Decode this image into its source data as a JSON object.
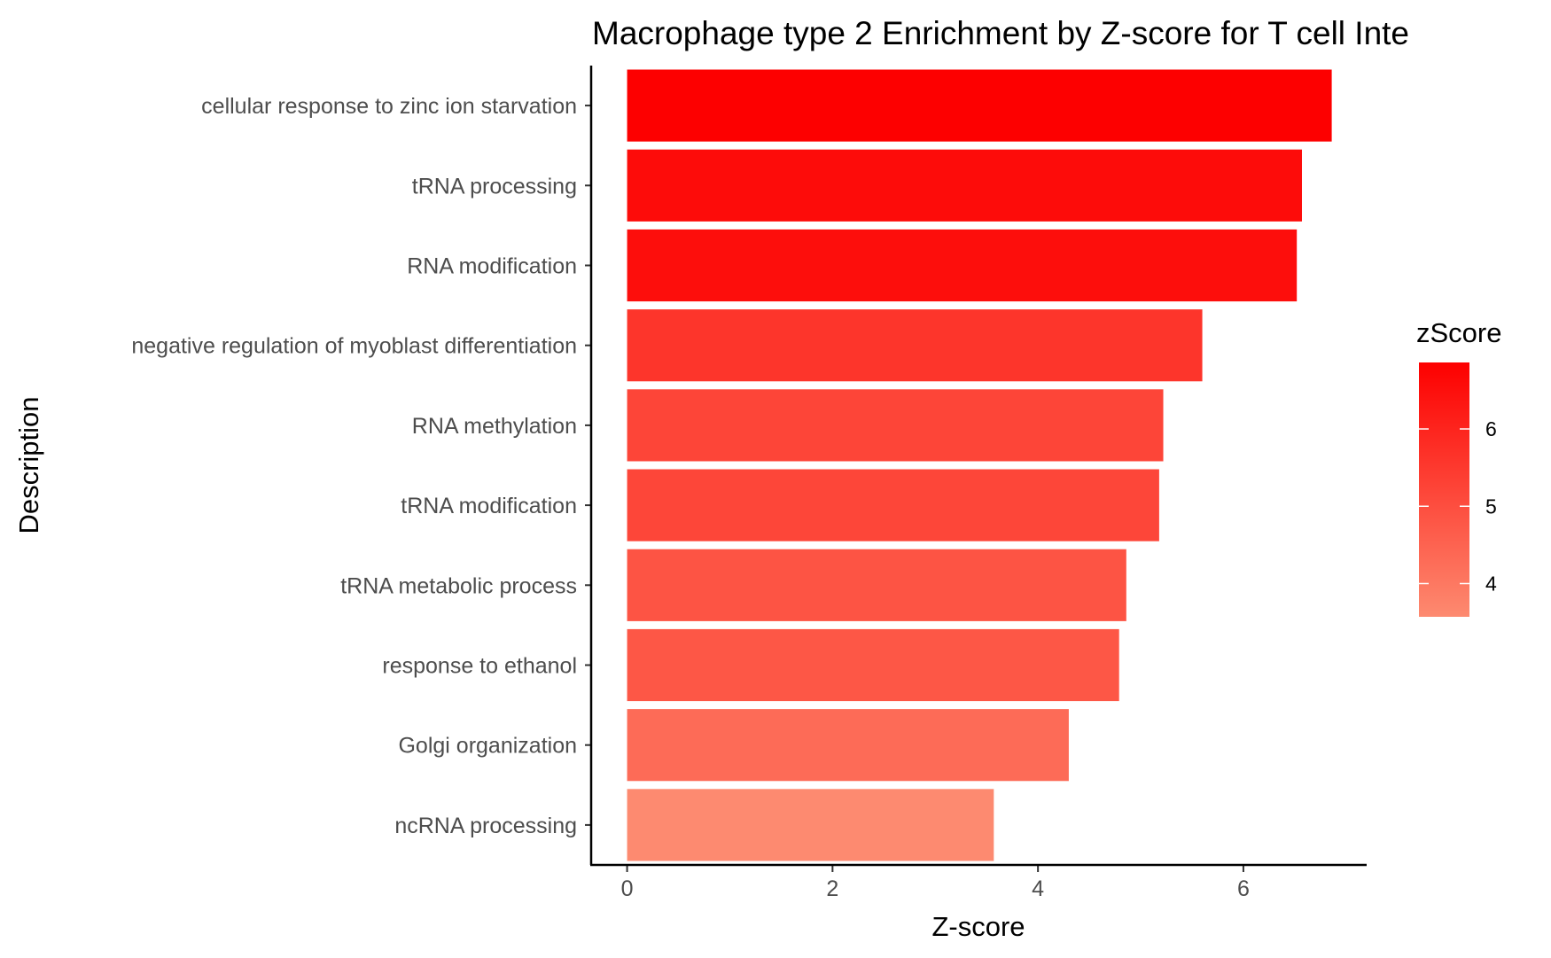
{
  "chart_data": {
    "type": "bar",
    "orientation": "horizontal",
    "title": "Macrophage type 2 Enrichment by Z-score for T cell Inte",
    "xlabel": "Z-score",
    "ylabel": "Description",
    "xlim": [
      -0.35,
      7.2
    ],
    "xticks": [
      0,
      2,
      4,
      6
    ],
    "grid": false,
    "categories": [
      "cellular response to zinc ion starvation",
      "tRNA processing",
      "RNA modification",
      "negative regulation of myoblast differentiation",
      "RNA methylation",
      "tRNA modification",
      "tRNA metabolic process",
      "response to ethanol",
      "Golgi organization",
      "ncRNA processing"
    ],
    "values": [
      6.86,
      6.57,
      6.52,
      5.6,
      5.22,
      5.18,
      4.86,
      4.79,
      4.3,
      3.57
    ],
    "colorbar": {
      "title": "zScore",
      "min": 3.57,
      "max": 6.86,
      "ticks": [
        4,
        5,
        6
      ],
      "low_color": "#fd8a70",
      "high_color": "#fd0000",
      "placement": "right"
    }
  }
}
